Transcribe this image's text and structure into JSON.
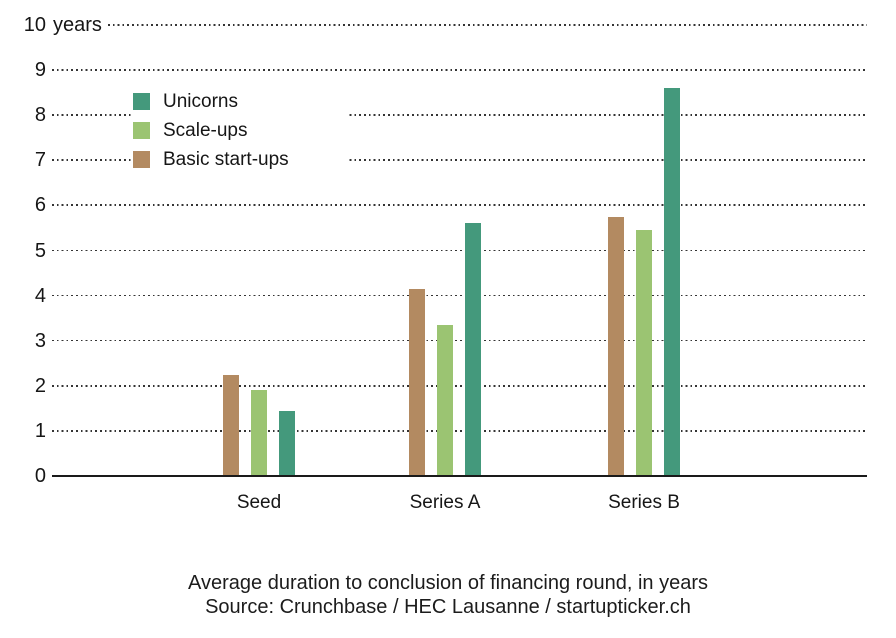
{
  "chart_data": {
    "type": "bar",
    "title": "Average duration to conclusion of financing round, in years",
    "source": "Source: Crunchbase / HEC Lausanne / startupticker.ch",
    "categories": [
      "Seed",
      "Series A",
      "Series B"
    ],
    "series": [
      {
        "name": "Unicorns",
        "color": "#44997C",
        "values": [
          1.45,
          5.6,
          8.6
        ]
      },
      {
        "name": "Scale-ups",
        "color": "#9BC472",
        "values": [
          1.9,
          3.35,
          5.45
        ]
      },
      {
        "name": "Basic start-ups",
        "color": "#B38A61",
        "values": [
          2.25,
          4.15,
          5.75
        ]
      }
    ],
    "bar_order_in_group": [
      "Basic start-ups",
      "Scale-ups",
      "Unicorns"
    ],
    "y_axis": {
      "min": 0,
      "max": 10,
      "step": 1,
      "unit": "years",
      "tick_labels": [
        "0",
        "1",
        "2",
        "3",
        "4",
        "5",
        "6",
        "7",
        "8",
        "9",
        "10"
      ]
    },
    "xlabel": "",
    "ylabel": "years",
    "ylim": [
      0,
      10
    ],
    "grid": "dotted-horizontal",
    "legend_position": "upper-left-inside",
    "axis_color": "#1a1a1a",
    "grid_color": "#343434",
    "background_color": "#ffffff"
  }
}
